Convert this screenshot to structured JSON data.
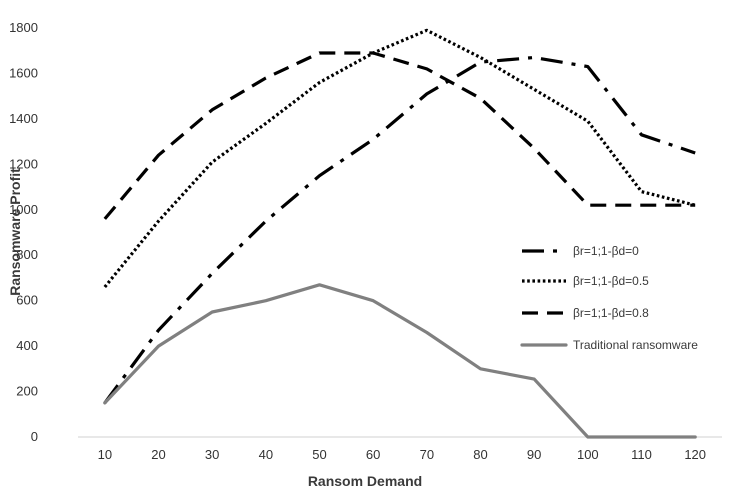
{
  "chart_data": {
    "type": "line",
    "title": "",
    "xlabel": "Ransom Demand",
    "ylabel": "Ransomware Profit",
    "x": [
      10,
      20,
      30,
      40,
      50,
      60,
      70,
      80,
      90,
      100,
      110,
      120
    ],
    "ylim": [
      0,
      1800
    ],
    "yticks": [
      0,
      200,
      400,
      600,
      800,
      1000,
      1200,
      1400,
      1600,
      1800
    ],
    "grid": false,
    "legend_position": "right",
    "series": [
      {
        "name": "βr=1;1-βd=0",
        "style": "dashdot",
        "color": "#000000",
        "values": [
          150,
          470,
          720,
          950,
          1150,
          1310,
          1510,
          1650,
          1670,
          1630,
          1330,
          1250
        ]
      },
      {
        "name": "βr=1;1-βd=0.5",
        "style": "dotted",
        "color": "#000000",
        "values": [
          660,
          950,
          1210,
          1380,
          1560,
          1690,
          1790,
          1670,
          1530,
          1390,
          1080,
          1020
        ]
      },
      {
        "name": "βr=1;1-βd=0.8",
        "style": "dashed",
        "color": "#000000",
        "values": [
          960,
          1240,
          1440,
          1580,
          1690,
          1690,
          1620,
          1490,
          1270,
          1020,
          1020,
          1020
        ]
      },
      {
        "name": "Traditional ransomware",
        "style": "solid",
        "color": "#808080",
        "values": [
          150,
          400,
          550,
          600,
          670,
          600,
          460,
          300,
          255,
          0,
          0,
          0
        ]
      }
    ]
  }
}
